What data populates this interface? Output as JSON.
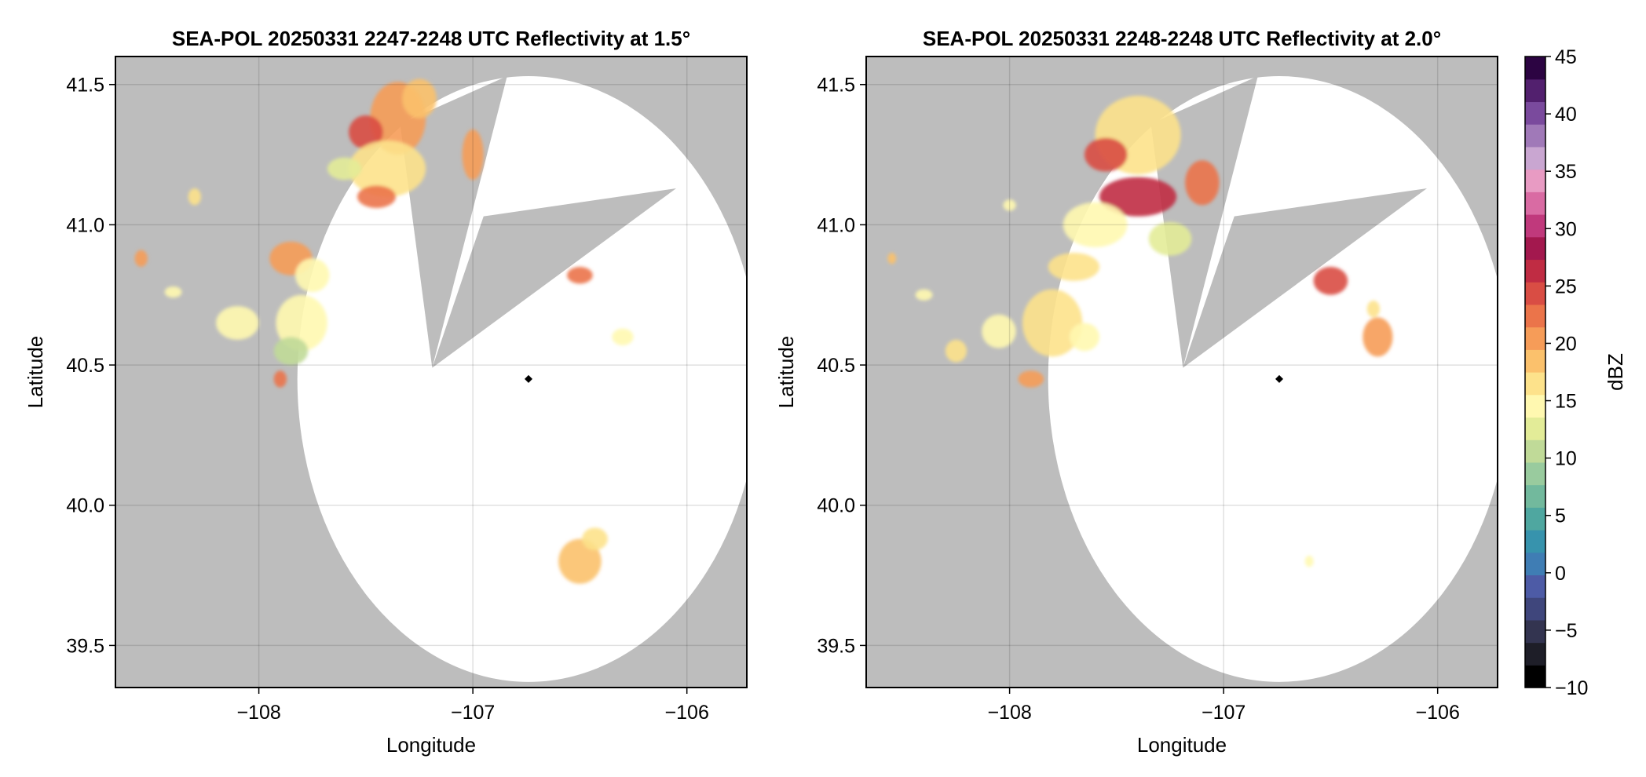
{
  "chart_data": [
    {
      "type": "heatmap",
      "title": "SEA-POL 20250331 2247-2248 UTC Reflectivity at 1.5°",
      "xlabel": "Longitude",
      "ylabel": "Latitude",
      "xlim": [
        -108.67,
        -105.72
      ],
      "ylim": [
        39.35,
        41.6
      ],
      "x_ticks": [
        -108,
        -107,
        -106
      ],
      "x_tick_labels": [
        "−108",
        "−107",
        "−106"
      ],
      "y_ticks": [
        39.5,
        40.0,
        40.5,
        41.0,
        41.5
      ],
      "y_tick_labels": [
        "39.5",
        "40.0",
        "40.5",
        "41.0",
        "41.5"
      ],
      "grid": true,
      "background_color": "#bdbdbd",
      "radar_center": [
        -106.74,
        40.45
      ],
      "coverage_radius_deg": 1.08,
      "blocked_sectors": [
        {
          "name": "north-northeast",
          "apex": [
            -107.19,
            40.49
          ],
          "from": [
            -107.34,
            41.36
          ],
          "to": [
            -106.84,
            41.53
          ]
        },
        {
          "name": "northeast",
          "apex": [
            -107.19,
            40.49
          ],
          "from": [
            -106.95,
            41.03
          ],
          "to": [
            -106.05,
            41.13
          ]
        }
      ],
      "echoes": [
        {
          "lon": -107.35,
          "lat": 41.38,
          "rx": 0.13,
          "ry": 0.13,
          "dbz": 20
        },
        {
          "lon": -107.25,
          "lat": 41.45,
          "rx": 0.08,
          "ry": 0.07,
          "dbz": 18
        },
        {
          "lon": -107.5,
          "lat": 41.33,
          "rx": 0.08,
          "ry": 0.06,
          "dbz": 25
        },
        {
          "lon": -107.4,
          "lat": 41.2,
          "rx": 0.18,
          "ry": 0.1,
          "dbz": 16
        },
        {
          "lon": -107.45,
          "lat": 41.1,
          "rx": 0.09,
          "ry": 0.04,
          "dbz": 23
        },
        {
          "lon": -107.0,
          "lat": 41.25,
          "rx": 0.05,
          "ry": 0.09,
          "dbz": 20
        },
        {
          "lon": -107.6,
          "lat": 41.2,
          "rx": 0.08,
          "ry": 0.04,
          "dbz": 12
        },
        {
          "lon": -107.85,
          "lat": 40.88,
          "rx": 0.1,
          "ry": 0.06,
          "dbz": 20
        },
        {
          "lon": -107.75,
          "lat": 40.82,
          "rx": 0.08,
          "ry": 0.06,
          "dbz": 14
        },
        {
          "lon": -107.8,
          "lat": 40.65,
          "rx": 0.12,
          "ry": 0.1,
          "dbz": 14
        },
        {
          "lon": -107.85,
          "lat": 40.55,
          "rx": 0.08,
          "ry": 0.05,
          "dbz": 11
        },
        {
          "lon": -108.1,
          "lat": 40.65,
          "rx": 0.1,
          "ry": 0.06,
          "dbz": 15
        },
        {
          "lon": -107.9,
          "lat": 40.45,
          "rx": 0.03,
          "ry": 0.03,
          "dbz": 22
        },
        {
          "lon": -108.55,
          "lat": 40.88,
          "rx": 0.03,
          "ry": 0.03,
          "dbz": 20
        },
        {
          "lon": -108.4,
          "lat": 40.76,
          "rx": 0.04,
          "ry": 0.02,
          "dbz": 14
        },
        {
          "lon": -108.3,
          "lat": 41.1,
          "rx": 0.03,
          "ry": 0.03,
          "dbz": 16
        },
        {
          "lon": -106.5,
          "lat": 40.82,
          "rx": 0.06,
          "ry": 0.03,
          "dbz": 22
        },
        {
          "lon": -106.3,
          "lat": 40.6,
          "rx": 0.05,
          "ry": 0.03,
          "dbz": 14
        },
        {
          "lon": -106.5,
          "lat": 39.8,
          "rx": 0.1,
          "ry": 0.08,
          "dbz": 18
        },
        {
          "lon": -106.43,
          "lat": 39.88,
          "rx": 0.06,
          "ry": 0.04,
          "dbz": 17
        }
      ]
    },
    {
      "type": "heatmap",
      "title": "SEA-POL 20250331 2248-2248 UTC Reflectivity at 2.0°",
      "xlabel": "Longitude",
      "ylabel": "Latitude",
      "xlim": [
        -108.67,
        -105.72
      ],
      "ylim": [
        39.35,
        41.6
      ],
      "x_ticks": [
        -108,
        -107,
        -106
      ],
      "x_tick_labels": [
        "−108",
        "−107",
        "−106"
      ],
      "y_ticks": [
        39.5,
        40.0,
        40.5,
        41.0,
        41.5
      ],
      "y_tick_labels": [
        "39.5",
        "40.0",
        "40.5",
        "41.0",
        "41.5"
      ],
      "grid": true,
      "background_color": "#bdbdbd",
      "radar_center": [
        -106.74,
        40.45
      ],
      "coverage_radius_deg": 1.08,
      "blocked_sectors": [
        {
          "name": "north-northeast",
          "apex": [
            -107.19,
            40.49
          ],
          "from": [
            -107.34,
            41.36
          ],
          "to": [
            -106.84,
            41.53
          ]
        },
        {
          "name": "northeast",
          "apex": [
            -107.19,
            40.49
          ],
          "from": [
            -106.95,
            41.03
          ],
          "to": [
            -106.05,
            41.13
          ]
        }
      ],
      "echoes": [
        {
          "lon": -107.4,
          "lat": 41.32,
          "rx": 0.2,
          "ry": 0.14,
          "dbz": 16
        },
        {
          "lon": -107.55,
          "lat": 41.25,
          "rx": 0.1,
          "ry": 0.06,
          "dbz": 24
        },
        {
          "lon": -107.4,
          "lat": 41.1,
          "rx": 0.18,
          "ry": 0.07,
          "dbz": 26
        },
        {
          "lon": -107.1,
          "lat": 41.15,
          "rx": 0.08,
          "ry": 0.08,
          "dbz": 22
        },
        {
          "lon": -107.6,
          "lat": 41.0,
          "rx": 0.15,
          "ry": 0.08,
          "dbz": 14
        },
        {
          "lon": -107.25,
          "lat": 40.95,
          "rx": 0.1,
          "ry": 0.06,
          "dbz": 13
        },
        {
          "lon": -107.7,
          "lat": 40.85,
          "rx": 0.12,
          "ry": 0.05,
          "dbz": 17
        },
        {
          "lon": -107.8,
          "lat": 40.65,
          "rx": 0.14,
          "ry": 0.12,
          "dbz": 17
        },
        {
          "lon": -107.65,
          "lat": 40.6,
          "rx": 0.07,
          "ry": 0.05,
          "dbz": 14
        },
        {
          "lon": -108.05,
          "lat": 40.62,
          "rx": 0.08,
          "ry": 0.06,
          "dbz": 15
        },
        {
          "lon": -107.9,
          "lat": 40.45,
          "rx": 0.06,
          "ry": 0.03,
          "dbz": 20
        },
        {
          "lon": -108.25,
          "lat": 40.55,
          "rx": 0.05,
          "ry": 0.04,
          "dbz": 16
        },
        {
          "lon": -108.4,
          "lat": 40.75,
          "rx": 0.04,
          "ry": 0.02,
          "dbz": 14
        },
        {
          "lon": -108.55,
          "lat": 40.88,
          "rx": 0.02,
          "ry": 0.02,
          "dbz": 18
        },
        {
          "lon": -108.0,
          "lat": 41.07,
          "rx": 0.03,
          "ry": 0.02,
          "dbz": 15
        },
        {
          "lon": -106.5,
          "lat": 40.8,
          "rx": 0.08,
          "ry": 0.05,
          "dbz": 24
        },
        {
          "lon": -106.28,
          "lat": 40.6,
          "rx": 0.07,
          "ry": 0.07,
          "dbz": 21
        },
        {
          "lon": -106.3,
          "lat": 40.7,
          "rx": 0.03,
          "ry": 0.03,
          "dbz": 17
        },
        {
          "lon": -106.6,
          "lat": 39.8,
          "rx": 0.02,
          "ry": 0.02,
          "dbz": 15
        }
      ]
    }
  ],
  "colorbar": {
    "label": "dBZ",
    "min": -10,
    "max": 45,
    "ticks": [
      -10,
      -5,
      0,
      5,
      10,
      15,
      20,
      25,
      30,
      35,
      40,
      45
    ],
    "tick_labels": [
      "−10",
      "−5",
      "0",
      "5",
      "10",
      "15",
      "20",
      "25",
      "30",
      "35",
      "40",
      "45"
    ],
    "colors": [
      "#000000",
      "#1e1e28",
      "#333450",
      "#3f467c",
      "#4d5ba6",
      "#3f7db4",
      "#3793ad",
      "#4fa7a0",
      "#72b99d",
      "#99cb9e",
      "#c0da98",
      "#e3ec98",
      "#fff8b0",
      "#fde28b",
      "#fbc16c",
      "#f69c58",
      "#eb744a",
      "#d94d44",
      "#c02c43",
      "#a3184e",
      "#c0397c",
      "#d96ba3",
      "#e89bc3",
      "#c9a6d1",
      "#a079b8",
      "#7a4a9d",
      "#52206e",
      "#2c0442"
    ]
  }
}
